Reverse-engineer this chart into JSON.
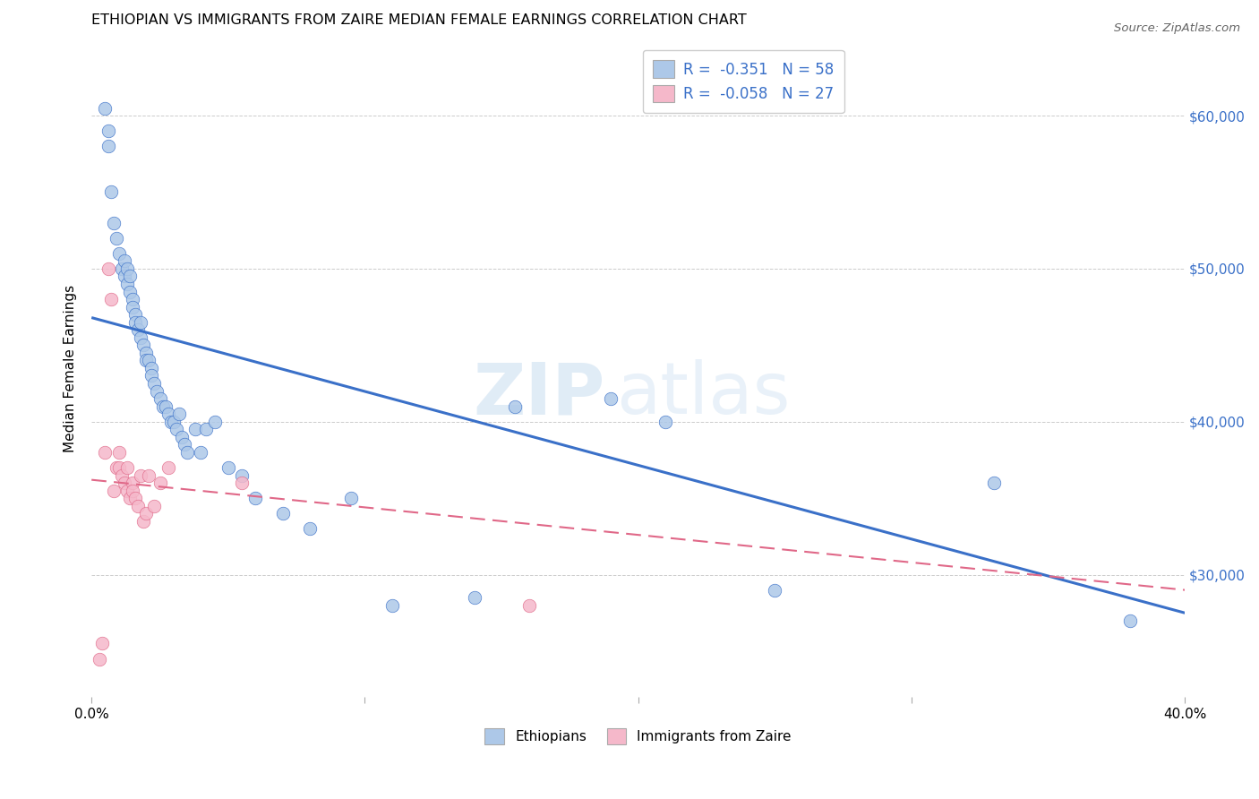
{
  "title": "ETHIOPIAN VS IMMIGRANTS FROM ZAIRE MEDIAN FEMALE EARNINGS CORRELATION CHART",
  "source": "Source: ZipAtlas.com",
  "ylabel": "Median Female Earnings",
  "xlim": [
    0.0,
    0.4
  ],
  "ylim": [
    22000,
    65000
  ],
  "yticks": [
    30000,
    40000,
    50000,
    60000
  ],
  "ytick_labels": [
    "$30,000",
    "$40,000",
    "$50,000",
    "$60,000"
  ],
  "xticks": [
    0.0,
    0.1,
    0.2,
    0.3,
    0.4
  ],
  "xtick_labels": [
    "0.0%",
    "",
    "",
    "",
    "40.0%"
  ],
  "blue_color": "#adc8e8",
  "blue_line_color": "#3a70c8",
  "pink_color": "#f5b8ca",
  "pink_line_color": "#e06888",
  "legend_blue_label": "R =  -0.351   N = 58",
  "legend_pink_label": "R =  -0.058   N = 27",
  "legend_eth_label": "Ethiopians",
  "legend_zaire_label": "Immigrants from Zaire",
  "watermark_zip": "ZIP",
  "watermark_atlas": "atlas",
  "blue_scatter_x": [
    0.005,
    0.006,
    0.006,
    0.007,
    0.008,
    0.009,
    0.01,
    0.011,
    0.012,
    0.012,
    0.013,
    0.013,
    0.014,
    0.014,
    0.015,
    0.015,
    0.016,
    0.016,
    0.017,
    0.018,
    0.018,
    0.019,
    0.02,
    0.02,
    0.021,
    0.022,
    0.022,
    0.023,
    0.024,
    0.025,
    0.026,
    0.027,
    0.028,
    0.029,
    0.03,
    0.031,
    0.032,
    0.033,
    0.034,
    0.035,
    0.038,
    0.04,
    0.042,
    0.045,
    0.05,
    0.055,
    0.06,
    0.07,
    0.08,
    0.095,
    0.11,
    0.14,
    0.155,
    0.19,
    0.21,
    0.25,
    0.33,
    0.38
  ],
  "blue_scatter_y": [
    60500,
    59000,
    58000,
    55000,
    53000,
    52000,
    51000,
    50000,
    50500,
    49500,
    50000,
    49000,
    49500,
    48500,
    48000,
    47500,
    47000,
    46500,
    46000,
    46500,
    45500,
    45000,
    44500,
    44000,
    44000,
    43500,
    43000,
    42500,
    42000,
    41500,
    41000,
    41000,
    40500,
    40000,
    40000,
    39500,
    40500,
    39000,
    38500,
    38000,
    39500,
    38000,
    39500,
    40000,
    37000,
    36500,
    35000,
    34000,
    33000,
    35000,
    28000,
    28500,
    41000,
    41500,
    40000,
    29000,
    36000,
    27000
  ],
  "pink_scatter_x": [
    0.003,
    0.004,
    0.005,
    0.006,
    0.007,
    0.008,
    0.009,
    0.01,
    0.01,
    0.011,
    0.012,
    0.013,
    0.013,
    0.014,
    0.015,
    0.015,
    0.016,
    0.017,
    0.018,
    0.019,
    0.02,
    0.021,
    0.023,
    0.025,
    0.028,
    0.055,
    0.16
  ],
  "pink_scatter_y": [
    24500,
    25500,
    38000,
    50000,
    48000,
    35500,
    37000,
    38000,
    37000,
    36500,
    36000,
    37000,
    35500,
    35000,
    36000,
    35500,
    35000,
    34500,
    36500,
    33500,
    34000,
    36500,
    34500,
    36000,
    37000,
    36000,
    28000
  ],
  "blue_trendline_x": [
    0.0,
    0.4
  ],
  "blue_trendline_y": [
    46800,
    27500
  ],
  "pink_trendline_x": [
    0.0,
    0.4
  ],
  "pink_trendline_y": [
    36200,
    29000
  ]
}
